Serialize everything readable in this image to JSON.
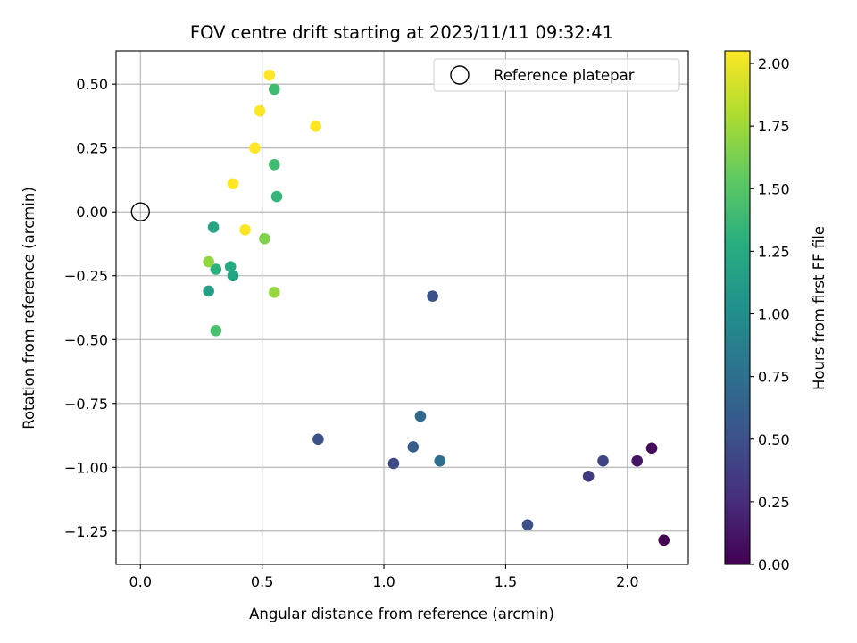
{
  "chart_data": {
    "type": "scatter",
    "title": "FOV centre drift starting at 2023/11/11 09:32:41",
    "xlabel": "Angular distance from reference (arcmin)",
    "ylabel": "Rotation from reference (arcmin)",
    "xlim": [
      -0.1,
      2.25
    ],
    "ylim": [
      -1.38,
      0.63
    ],
    "xticks": [
      {
        "value": 0.0,
        "label": "0.0"
      },
      {
        "value": 0.5,
        "label": "0.5"
      },
      {
        "value": 1.0,
        "label": "1.0"
      },
      {
        "value": 1.5,
        "label": "1.5"
      },
      {
        "value": 2.0,
        "label": "2.0"
      }
    ],
    "yticks": [
      {
        "value": 0.5,
        "label": "0.50"
      },
      {
        "value": 0.25,
        "label": "0.25"
      },
      {
        "value": 0.0,
        "label": "0.00"
      },
      {
        "value": -0.25,
        "label": "−0.25"
      },
      {
        "value": -0.5,
        "label": "−0.50"
      },
      {
        "value": -0.75,
        "label": "−0.75"
      },
      {
        "value": -1.0,
        "label": "−1.00"
      },
      {
        "value": -1.25,
        "label": "−1.25"
      }
    ],
    "grid": true,
    "legend": {
      "placement": "top-right",
      "entries": [
        "Reference platepar"
      ]
    },
    "reference_point": {
      "x": 0.0,
      "y": 0.0
    },
    "colorbar": {
      "label": "Hours from first FF file",
      "colormap": "viridis",
      "range": [
        0.0,
        2.05
      ],
      "ticks": [
        {
          "value": 0.0,
          "label": "0.00"
        },
        {
          "value": 0.25,
          "label": "0.25"
        },
        {
          "value": 0.5,
          "label": "0.50"
        },
        {
          "value": 0.75,
          "label": "0.75"
        },
        {
          "value": 1.0,
          "label": "1.00"
        },
        {
          "value": 1.25,
          "label": "1.25"
        },
        {
          "value": 1.5,
          "label": "1.50"
        },
        {
          "value": 1.75,
          "label": "1.75"
        },
        {
          "value": 2.0,
          "label": "2.00"
        }
      ]
    },
    "points": [
      {
        "x": 2.15,
        "y": -1.285,
        "hours": 0.0
      },
      {
        "x": 2.1,
        "y": -0.925,
        "hours": 0.05
      },
      {
        "x": 2.04,
        "y": -0.975,
        "hours": 0.12
      },
      {
        "x": 1.84,
        "y": -1.035,
        "hours": 0.35
      },
      {
        "x": 1.9,
        "y": -0.975,
        "hours": 0.42
      },
      {
        "x": 1.59,
        "y": -1.225,
        "hours": 0.5
      },
      {
        "x": 1.04,
        "y": -0.985,
        "hours": 0.45
      },
      {
        "x": 0.73,
        "y": -0.89,
        "hours": 0.5
      },
      {
        "x": 1.2,
        "y": -0.33,
        "hours": 0.5
      },
      {
        "x": 1.12,
        "y": -0.92,
        "hours": 0.6
      },
      {
        "x": 1.15,
        "y": -0.8,
        "hours": 0.7
      },
      {
        "x": 1.23,
        "y": -0.975,
        "hours": 0.75
      },
      {
        "x": 0.28,
        "y": -0.31,
        "hours": 1.15
      },
      {
        "x": 0.3,
        "y": -0.06,
        "hours": 1.2
      },
      {
        "x": 0.38,
        "y": -0.25,
        "hours": 1.2
      },
      {
        "x": 0.37,
        "y": -0.215,
        "hours": 1.25
      },
      {
        "x": 0.31,
        "y": -0.225,
        "hours": 1.3
      },
      {
        "x": 0.56,
        "y": 0.06,
        "hours": 1.35
      },
      {
        "x": 0.55,
        "y": 0.185,
        "hours": 1.4
      },
      {
        "x": 0.55,
        "y": 0.48,
        "hours": 1.4
      },
      {
        "x": 0.31,
        "y": -0.465,
        "hours": 1.45
      },
      {
        "x": 0.51,
        "y": -0.105,
        "hours": 1.65
      },
      {
        "x": 0.28,
        "y": -0.195,
        "hours": 1.7
      },
      {
        "x": 0.55,
        "y": -0.315,
        "hours": 1.72
      },
      {
        "x": 0.43,
        "y": -0.07,
        "hours": 2.05
      },
      {
        "x": 0.38,
        "y": 0.11,
        "hours": 2.05
      },
      {
        "x": 0.47,
        "y": 0.25,
        "hours": 2.05
      },
      {
        "x": 0.49,
        "y": 0.395,
        "hours": 2.05
      },
      {
        "x": 0.53,
        "y": 0.535,
        "hours": 2.05
      },
      {
        "x": 0.72,
        "y": 0.335,
        "hours": 2.05
      }
    ]
  }
}
